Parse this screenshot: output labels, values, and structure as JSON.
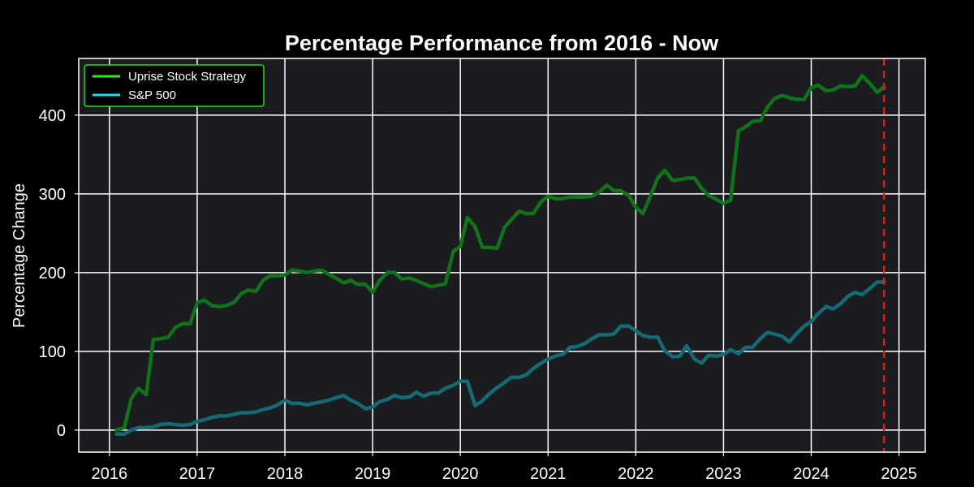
{
  "chart_data": {
    "type": "line",
    "title": "Percentage Performance from 2016 - Now",
    "xlabel": "",
    "ylabel": "Percentage Change",
    "xlim": [
      2015.65,
      2025.3
    ],
    "ylim": [
      -28,
      472
    ],
    "x_ticks": [
      2016,
      2017,
      2018,
      2019,
      2020,
      2021,
      2022,
      2023,
      2024,
      2025
    ],
    "x_tick_labels": [
      "2016",
      "2017",
      "2018",
      "2019",
      "2020",
      "2021",
      "2022",
      "2023",
      "2024",
      "2025"
    ],
    "y_ticks": [
      0,
      100,
      200,
      300,
      400
    ],
    "y_tick_labels": [
      "0",
      "100",
      "200",
      "300",
      "400"
    ],
    "grid": true,
    "legend_position": "top-left",
    "vertical_marker": {
      "x": 2024.83,
      "color": "#cc2222",
      "style": "dashed"
    },
    "colors": {
      "background": "#000000",
      "plot_background": "#1b1c1f",
      "grid": "#ffffff",
      "legend_border": "#22dd22"
    },
    "series": [
      {
        "name": "Uprise Stock Strategy",
        "color": "#11721a",
        "legend_color": "#22ee22",
        "x": [
          2016.08,
          2016.17,
          2016.25,
          2016.33,
          2016.42,
          2016.5,
          2016.58,
          2016.67,
          2016.75,
          2016.83,
          2016.92,
          2017.0,
          2017.08,
          2017.17,
          2017.25,
          2017.33,
          2017.42,
          2017.5,
          2017.58,
          2017.67,
          2017.75,
          2017.83,
          2017.92,
          2018.0,
          2018.08,
          2018.17,
          2018.25,
          2018.33,
          2018.42,
          2018.5,
          2018.58,
          2018.67,
          2018.75,
          2018.83,
          2018.92,
          2019.0,
          2019.08,
          2019.17,
          2019.25,
          2019.33,
          2019.42,
          2019.5,
          2019.58,
          2019.67,
          2019.75,
          2019.83,
          2019.92,
          2020.0,
          2020.08,
          2020.17,
          2020.25,
          2020.33,
          2020.42,
          2020.5,
          2020.58,
          2020.67,
          2020.75,
          2020.83,
          2020.92,
          2021.0,
          2021.08,
          2021.17,
          2021.25,
          2021.33,
          2021.42,
          2021.5,
          2021.58,
          2021.67,
          2021.75,
          2021.83,
          2021.92,
          2022.0,
          2022.08,
          2022.17,
          2022.25,
          2022.33,
          2022.42,
          2022.5,
          2022.58,
          2022.67,
          2022.75,
          2022.83,
          2022.92,
          2023.0,
          2023.08,
          2023.17,
          2023.25,
          2023.33,
          2023.42,
          2023.5,
          2023.58,
          2023.67,
          2023.75,
          2023.83,
          2023.92,
          2024.0,
          2024.08,
          2024.17,
          2024.25,
          2024.33,
          2024.42,
          2024.5,
          2024.58,
          2024.67,
          2024.75,
          2024.83
        ],
        "y": [
          0,
          3,
          40,
          53,
          45,
          115,
          116,
          118,
          130,
          135,
          135,
          162,
          165,
          158,
          157,
          158,
          162,
          173,
          178,
          176,
          190,
          196,
          196,
          197,
          203,
          202,
          200,
          202,
          203,
          198,
          193,
          187,
          190,
          185,
          185,
          175,
          190,
          200,
          200,
          192,
          193,
          190,
          186,
          182,
          184,
          186,
          227,
          233,
          270,
          258,
          232,
          232,
          231,
          257,
          267,
          278,
          275,
          275,
          290,
          297,
          294,
          294,
          296,
          296,
          296,
          297,
          302,
          311,
          304,
          304,
          298,
          283,
          275,
          298,
          320,
          330,
          317,
          318,
          320,
          320,
          307,
          298,
          293,
          288,
          292,
          380,
          385,
          392,
          393,
          410,
          421,
          425,
          422,
          420,
          420,
          435,
          438,
          431,
          432,
          437,
          436,
          437,
          450,
          440,
          429,
          436
        ]
      },
      {
        "name": "S&P 500",
        "color": "#156a74",
        "legend_color": "#22ddee",
        "x": [
          2016.08,
          2016.17,
          2016.25,
          2016.33,
          2016.42,
          2016.5,
          2016.58,
          2016.67,
          2016.75,
          2016.83,
          2016.92,
          2017.0,
          2017.08,
          2017.17,
          2017.25,
          2017.33,
          2017.42,
          2017.5,
          2017.58,
          2017.67,
          2017.75,
          2017.83,
          2017.92,
          2018.0,
          2018.08,
          2018.17,
          2018.25,
          2018.33,
          2018.42,
          2018.5,
          2018.58,
          2018.67,
          2018.75,
          2018.83,
          2018.92,
          2019.0,
          2019.08,
          2019.17,
          2019.25,
          2019.33,
          2019.42,
          2019.5,
          2019.58,
          2019.67,
          2019.75,
          2019.83,
          2019.92,
          2020.0,
          2020.08,
          2020.17,
          2020.25,
          2020.33,
          2020.42,
          2020.5,
          2020.58,
          2020.67,
          2020.75,
          2020.83,
          2020.92,
          2021.0,
          2021.08,
          2021.17,
          2021.25,
          2021.33,
          2021.42,
          2021.5,
          2021.58,
          2021.67,
          2021.75,
          2021.83,
          2021.92,
          2022.0,
          2022.08,
          2022.17,
          2022.25,
          2022.33,
          2022.42,
          2022.5,
          2022.58,
          2022.67,
          2022.75,
          2022.83,
          2022.92,
          2023.0,
          2023.08,
          2023.17,
          2023.25,
          2023.33,
          2023.42,
          2023.5,
          2023.58,
          2023.67,
          2023.75,
          2023.83,
          2023.92,
          2024.0,
          2024.08,
          2024.17,
          2024.25,
          2024.33,
          2024.42,
          2024.5,
          2024.58,
          2024.67,
          2024.75,
          2024.83
        ],
        "y": [
          -5,
          -5,
          0,
          3,
          3,
          4,
          7,
          8,
          7,
          6,
          7,
          11,
          13,
          16,
          18,
          18,
          20,
          22,
          22,
          23,
          26,
          28,
          32,
          38,
          34,
          34,
          32,
          34,
          36,
          38,
          41,
          44,
          38,
          34,
          27,
          29,
          36,
          39,
          44,
          41,
          42,
          48,
          43,
          47,
          47,
          53,
          57,
          62,
          62,
          31,
          37,
          46,
          54,
          60,
          67,
          67,
          70,
          78,
          85,
          90,
          94,
          96,
          105,
          106,
          110,
          116,
          121,
          121,
          122,
          132,
          132,
          126,
          120,
          118,
          118,
          101,
          93,
          94,
          107,
          90,
          85,
          95,
          94,
          96,
          102,
          97,
          105,
          105,
          116,
          124,
          122,
          119,
          112,
          122,
          132,
          138,
          148,
          157,
          154,
          160,
          170,
          175,
          172,
          180,
          188,
          188
        ]
      }
    ]
  }
}
